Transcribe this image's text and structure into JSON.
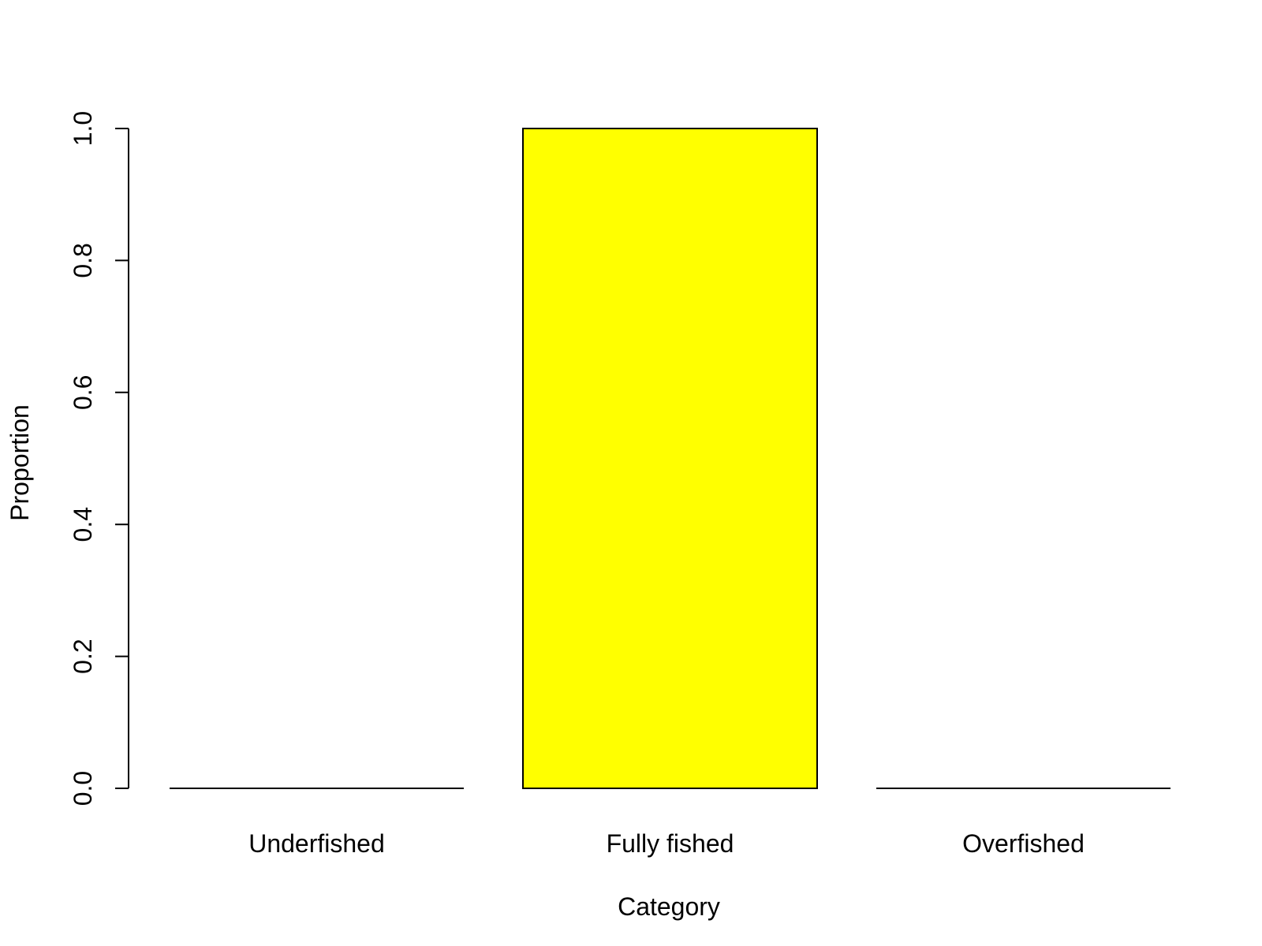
{
  "chart_data": {
    "type": "bar",
    "title": "",
    "xlabel": "Category",
    "ylabel": "Proportion",
    "categories": [
      "Underfished",
      "Fully fished",
      "Overfished"
    ],
    "values": [
      0.0,
      1.0,
      0.0
    ],
    "ylim": [
      0,
      1
    ],
    "yticks": [
      0.0,
      0.2,
      0.4,
      0.6,
      0.8,
      1.0
    ],
    "ytick_labels": [
      "0.0",
      "0.2",
      "0.4",
      "0.6",
      "0.8",
      "1.0"
    ],
    "grid": false,
    "legend": "none",
    "bar_fill": "#ffff00",
    "bar_stroke": "#000000"
  }
}
